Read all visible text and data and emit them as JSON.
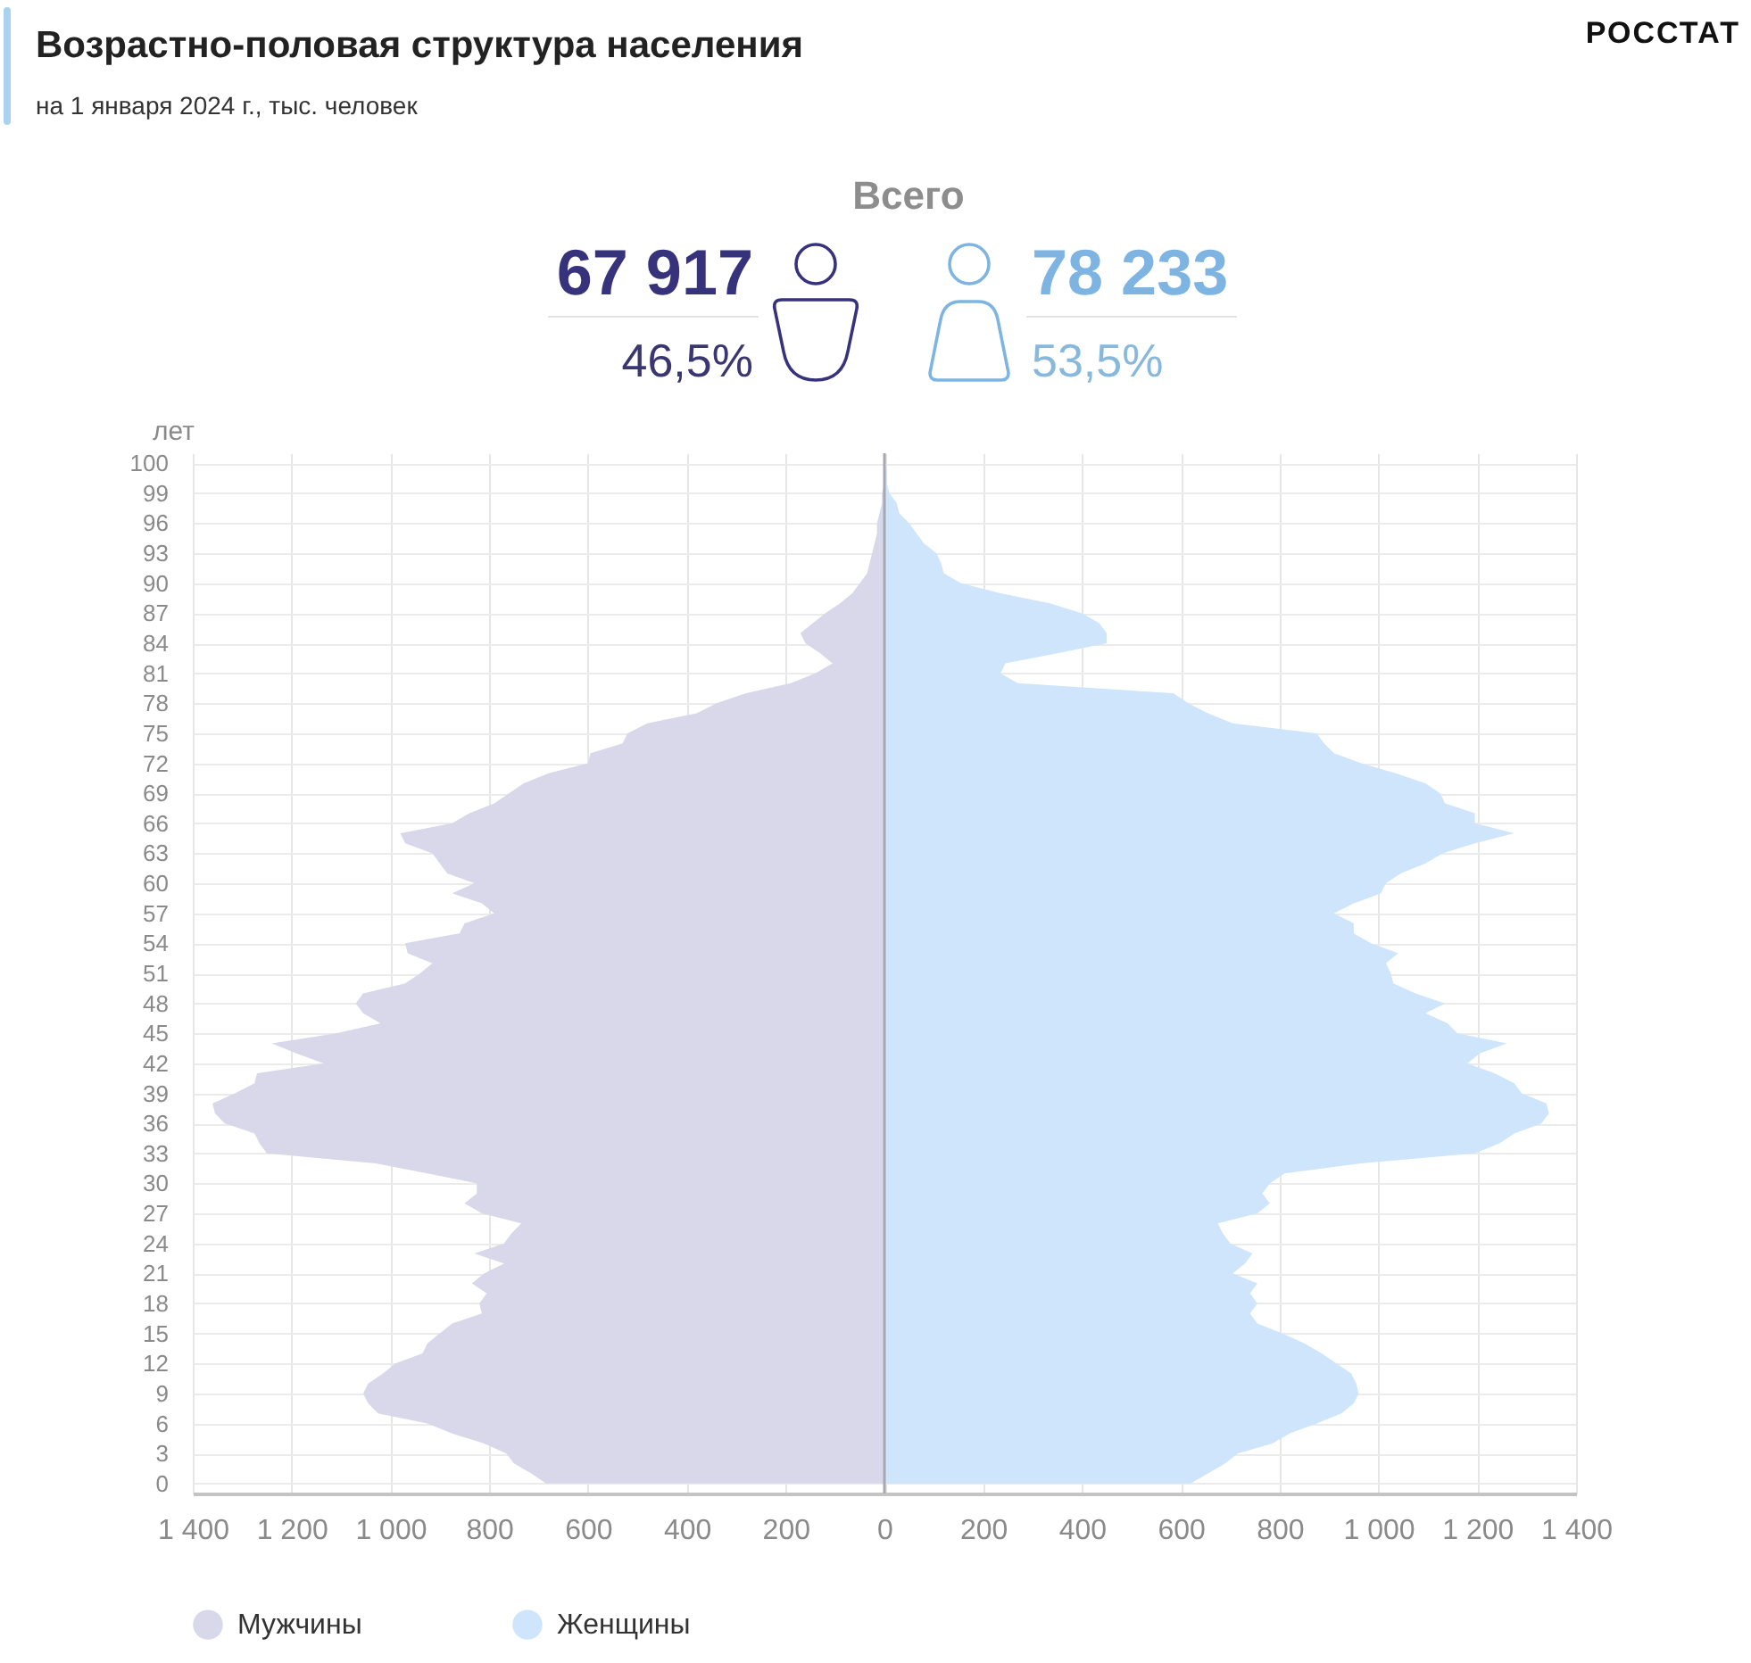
{
  "chart_data": {
    "type": "area",
    "orientation": "horizontal",
    "title": "Возрастно-половая структура населения",
    "subtitle": "на 1 января 2024 г., тыс. человек",
    "ylabel": "лет",
    "annotations": [
      "РОССТАТ",
      "Всего",
      "67 917",
      "46,5%",
      "78 233",
      "53,5%"
    ],
    "categories": [
      "100",
      null,
      null,
      "99",
      null,
      null,
      "96",
      null,
      null,
      "93",
      null,
      null,
      "90",
      null,
      null,
      "87",
      null,
      null,
      "84",
      null,
      null,
      "81",
      null,
      null,
      "78",
      null,
      null,
      "75",
      null,
      null,
      "72",
      null,
      null,
      "69",
      null,
      null,
      "66",
      null,
      null,
      "63",
      null,
      null,
      "60",
      null,
      null,
      "57",
      null,
      null,
      "54",
      null,
      null,
      "51",
      null,
      null,
      "48",
      null,
      null,
      "45",
      null,
      null,
      "42",
      null,
      null,
      "39",
      null,
      null,
      "36",
      null,
      null,
      "33",
      null,
      null,
      "30",
      null,
      null,
      "27",
      null,
      null,
      "24",
      null,
      null,
      "21",
      null,
      null,
      "18",
      null,
      null,
      "15",
      null,
      null,
      "12",
      null,
      null,
      "9",
      null,
      null,
      "6",
      null,
      null,
      "3",
      null,
      null,
      "0"
    ],
    "series": [
      {
        "name": "Мужчины",
        "color": "#d8d8ea",
        "values": [
          0,
          0,
          0,
          -5,
          -5,
          -10,
          -15,
          -15,
          -20,
          -25,
          -30,
          -35,
          -50,
          -65,
          -90,
          -120,
          -145,
          -170,
          -160,
          -130,
          -105,
          -140,
          -190,
          -280,
          -340,
          -380,
          -480,
          -520,
          -530,
          -595,
          -600,
          -680,
          -730,
          -760,
          -790,
          -840,
          -875,
          -980,
          -970,
          -915,
          -900,
          -885,
          -830,
          -875,
          -815,
          -790,
          -850,
          -860,
          -970,
          -965,
          -915,
          -940,
          -970,
          -1055,
          -1070,
          -1055,
          -1020,
          -1110,
          -1240,
          -1190,
          -1135,
          -1270,
          -1275,
          -1315,
          -1360,
          -1355,
          -1335,
          -1275,
          -1265,
          -1250,
          -1030,
          -925,
          -825,
          -825,
          -850,
          -815,
          -735,
          -755,
          -770,
          -830,
          -770,
          -810,
          -835,
          -805,
          -820,
          -815,
          -875,
          -900,
          -925,
          -935,
          -990,
          -1015,
          -1045,
          -1055,
          -1045,
          -1025,
          -925,
          -875,
          -810,
          -765,
          -750,
          -715,
          -685
        ]
      },
      {
        "name": "Женщины",
        "color": "#cfe5fb",
        "values": [
          0,
          5,
          5,
          10,
          25,
          30,
          50,
          65,
          80,
          105,
          115,
          120,
          155,
          235,
          335,
          400,
          435,
          450,
          450,
          350,
          245,
          235,
          270,
          585,
          615,
          655,
          705,
          875,
          890,
          910,
          965,
          1035,
          1095,
          1125,
          1135,
          1195,
          1195,
          1275,
          1195,
          1130,
          1095,
          1045,
          1015,
          1005,
          950,
          910,
          950,
          950,
          985,
          1040,
          1015,
          1025,
          1030,
          1075,
          1135,
          1095,
          1140,
          1160,
          1260,
          1205,
          1180,
          1235,
          1275,
          1290,
          1340,
          1345,
          1330,
          1275,
          1245,
          1195,
          965,
          810,
          780,
          765,
          780,
          755,
          675,
          685,
          700,
          745,
          730,
          705,
          755,
          740,
          755,
          740,
          755,
          805,
          850,
          885,
          915,
          945,
          955,
          960,
          950,
          925,
          875,
          820,
          785,
          715,
          690,
          655,
          620
        ]
      }
    ],
    "xlim": [
      -1400,
      1400
    ],
    "xticks": [
      {
        "value": -1400,
        "label": "1 400"
      },
      {
        "value": -1200,
        "label": "1 200"
      },
      {
        "value": -1000,
        "label": "1 000"
      },
      {
        "value": -800,
        "label": "800"
      },
      {
        "value": -600,
        "label": "600"
      },
      {
        "value": -400,
        "label": "400"
      },
      {
        "value": -200,
        "label": "200"
      },
      0,
      200,
      400,
      600,
      800,
      {
        "value": 1000,
        "label": "1 000"
      },
      {
        "value": 1200,
        "label": "1 200"
      },
      {
        "value": 1400,
        "label": "1 400"
      }
    ],
    "ref_lines": [
      {
        "axis": "x",
        "value": 0,
        "color": "#a8a8b2"
      }
    ],
    "grid": true,
    "legend": "bottom left"
  }
}
